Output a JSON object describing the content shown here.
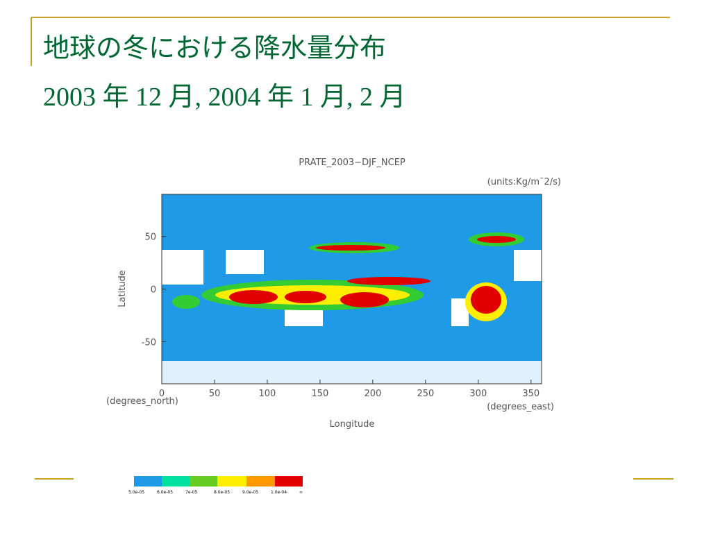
{
  "header": {
    "title": "地球の冬における降水量分布",
    "subtitle": "2003 年 12 月, 2004 年 1 月, 2 月"
  },
  "figure": {
    "title": "PRATE_2003−DJF_NCEP",
    "units": "(units:Kg/m¯2/s)",
    "y_label": "Latitude",
    "x_label": "Longitude",
    "y_unit": "(degrees_north)",
    "x_unit": "(degrees_east)",
    "xlim": [
      0,
      360
    ],
    "ylim": [
      -90,
      90
    ],
    "xticks": [
      0,
      50,
      100,
      150,
      200,
      250,
      300,
      350
    ],
    "yticks": [
      -50,
      0,
      50
    ],
    "colorbar_labels": [
      "5.0e-05",
      "6.0e-05",
      "7e-05",
      "8.0e-05",
      "9.0e-05",
      "1.0e-04",
      "∞"
    ]
  }
}
